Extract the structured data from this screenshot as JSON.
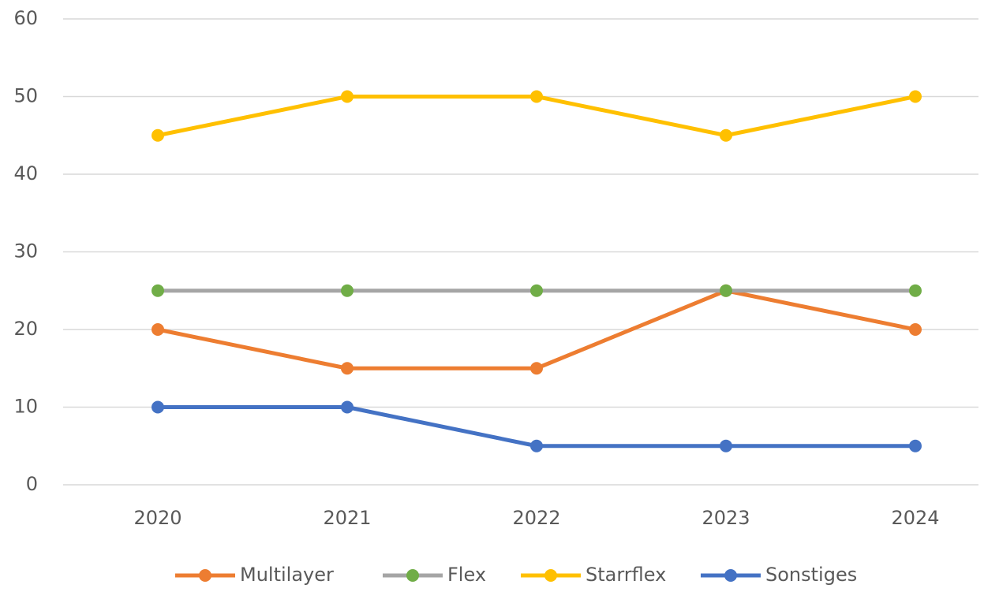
{
  "chart_data": {
    "type": "line",
    "categories": [
      "2020",
      "2021",
      "2022",
      "2023",
      "2024"
    ],
    "series": [
      {
        "name": "Multilayer",
        "color": "#ed7d31",
        "marker_color": "#ed7d31",
        "values": [
          20,
          15,
          15,
          25,
          20
        ]
      },
      {
        "name": "Flex",
        "color": "#a5a5a5",
        "marker_color": "#70ad47",
        "values": [
          25,
          25,
          25,
          25,
          25
        ]
      },
      {
        "name": "Starrflex",
        "color": "#ffc000",
        "marker_color": "#ffc000",
        "values": [
          45,
          50,
          50,
          45,
          50
        ]
      },
      {
        "name": "Sonstiges",
        "color": "#4472c4",
        "marker_color": "#4472c4",
        "values": [
          10,
          10,
          5,
          5,
          5
        ]
      }
    ],
    "ylim": [
      0,
      60
    ],
    "yticks": [
      0,
      10,
      20,
      30,
      40,
      50,
      60
    ],
    "grid": true,
    "legend": "bottom"
  }
}
